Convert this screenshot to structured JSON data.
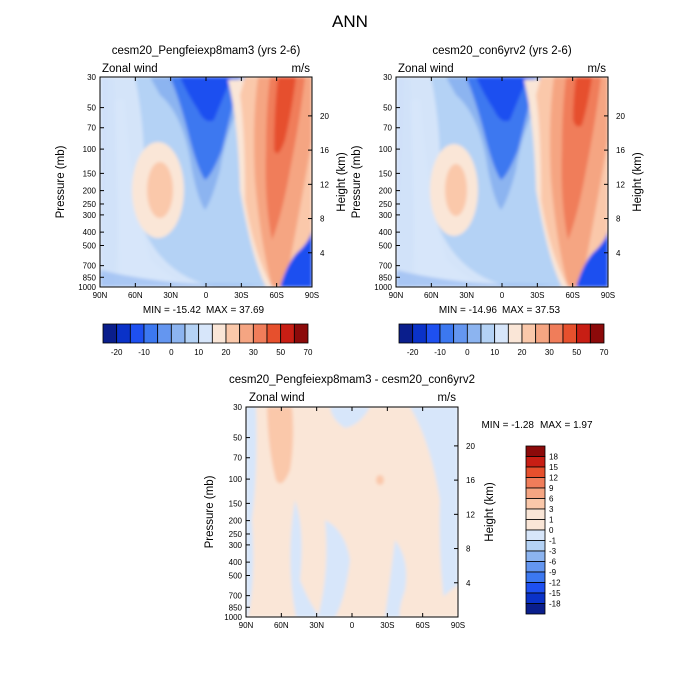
{
  "figure": {
    "title": "ANN"
  },
  "chart_data": [
    {
      "type": "heatmap",
      "title": "cesm20_Pengfeiexp8mam3 (yrs 2-6)",
      "left_label": "Zonal wind",
      "right_label": "m/s",
      "ylabel": "Pressure (mb)",
      "ylabel_right": "Height (km)",
      "x_ticks": [
        "90N",
        "60N",
        "30N",
        "0",
        "30S",
        "60S",
        "90S"
      ],
      "y_ticks": [
        "30",
        "50",
        "70",
        "100",
        "150",
        "200",
        "250",
        "300",
        "400",
        "500",
        "700",
        "850",
        "1000"
      ],
      "height_ticks": [
        "20",
        "16",
        "12",
        "8",
        "4"
      ],
      "ylim": [
        1000,
        30
      ],
      "xlim": [
        90,
        -90
      ],
      "min_label": "MIN = -15.42",
      "max_label": "MAX =  37.69",
      "colorbar_labels": [
        "-20",
        "-10",
        "0",
        "10",
        "20",
        "30",
        "50",
        "70"
      ],
      "colorbar_colors": [
        "#0a1e8c",
        "#0a32c8",
        "#1e50f0",
        "#3c78f0",
        "#6496f0",
        "#8cb4f0",
        "#b4d2f5",
        "#d7e6fa",
        "#fae6d7",
        "#fac8aa",
        "#f5a582",
        "#f07d5a",
        "#e6502d",
        "#c81e14",
        "#8c0a0a"
      ]
    },
    {
      "type": "heatmap",
      "title": "cesm20_con6yrv2 (yrs 2-6)",
      "left_label": "Zonal wind",
      "right_label": "m/s",
      "ylabel": "Pressure (mb)",
      "ylabel_right": "Height (km)",
      "x_ticks": [
        "90N",
        "60N",
        "30N",
        "0",
        "30S",
        "60S",
        "90S"
      ],
      "y_ticks": [
        "30",
        "50",
        "70",
        "100",
        "150",
        "200",
        "250",
        "300",
        "400",
        "500",
        "700",
        "850",
        "1000"
      ],
      "height_ticks": [
        "20",
        "16",
        "12",
        "8",
        "4"
      ],
      "ylim": [
        1000,
        30
      ],
      "xlim": [
        90,
        -90
      ],
      "min_label": "MIN = -14.96",
      "max_label": "MAX =  37.53",
      "colorbar_labels": [
        "-20",
        "-10",
        "0",
        "10",
        "20",
        "30",
        "50",
        "70"
      ],
      "colorbar_colors": [
        "#0a1e8c",
        "#0a32c8",
        "#1e50f0",
        "#3c78f0",
        "#6496f0",
        "#8cb4f0",
        "#b4d2f5",
        "#d7e6fa",
        "#fae6d7",
        "#fac8aa",
        "#f5a582",
        "#f07d5a",
        "#e6502d",
        "#c81e14",
        "#8c0a0a"
      ]
    },
    {
      "type": "heatmap",
      "title": "cesm20_Pengfeiexp8mam3 - cesm20_con6yrv2",
      "left_label": "Zonal wind",
      "right_label": "m/s",
      "ylabel": "Pressure (mb)",
      "ylabel_right": "Height (km)",
      "x_ticks": [
        "90N",
        "60N",
        "30N",
        "0",
        "30S",
        "60S",
        "90S"
      ],
      "y_ticks": [
        "30",
        "50",
        "70",
        "100",
        "150",
        "200",
        "250",
        "300",
        "400",
        "500",
        "700",
        "850",
        "1000"
      ],
      "height_ticks": [
        "20",
        "16",
        "12",
        "8",
        "4"
      ],
      "ylim": [
        1000,
        30
      ],
      "xlim": [
        90,
        -90
      ],
      "min_label": "MIN = -1.28",
      "max_label": "MAX =  1.97",
      "colorbar_labels": [
        "18",
        "15",
        "12",
        "9",
        "6",
        "3",
        "1",
        "0",
        "-1",
        "-3",
        "-6",
        "-9",
        "-12",
        "-15",
        "-18"
      ],
      "colorbar_colors": [
        "#8c0a0a",
        "#c81e14",
        "#e6502d",
        "#f07d5a",
        "#f5a582",
        "#fac8aa",
        "#fae6d7",
        "#fae6d7",
        "#d7e6fa",
        "#b4d2f5",
        "#8cb4f0",
        "#6496f0",
        "#3c78f0",
        "#1e50f0",
        "#0a32c8",
        "#0a1e8c"
      ]
    }
  ]
}
